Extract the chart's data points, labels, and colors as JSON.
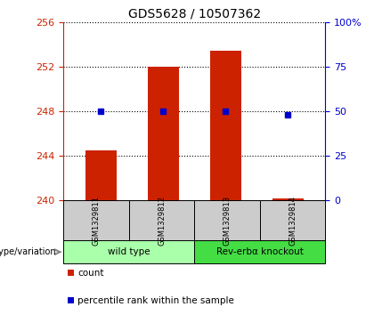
{
  "title": "GDS5628 / 10507362",
  "samples": [
    "GSM1329811",
    "GSM1329812",
    "GSM1329813",
    "GSM1329814"
  ],
  "count_values": [
    244.5,
    252.0,
    253.5,
    240.2
  ],
  "percentile_values": [
    50,
    50,
    50,
    48
  ],
  "ylim_left": [
    240,
    256
  ],
  "ylim_right": [
    0,
    100
  ],
  "yticks_left": [
    240,
    244,
    248,
    252,
    256
  ],
  "yticks_right": [
    0,
    25,
    50,
    75,
    100
  ],
  "ytick_labels_right": [
    "0",
    "25",
    "50",
    "75",
    "100%"
  ],
  "bar_color": "#cc2200",
  "dot_color": "#0000cc",
  "title_fontsize": 10,
  "groups": [
    {
      "label": "wild type",
      "samples": [
        0,
        1
      ],
      "color": "#aaffaa"
    },
    {
      "label": "Rev-erbα knockout",
      "samples": [
        2,
        3
      ],
      "color": "#44dd44"
    }
  ],
  "genotype_label": "genotype/variation",
  "legend_count": "count",
  "legend_percentile": "percentile rank within the sample",
  "bar_width": 0.5,
  "baseline": 240
}
